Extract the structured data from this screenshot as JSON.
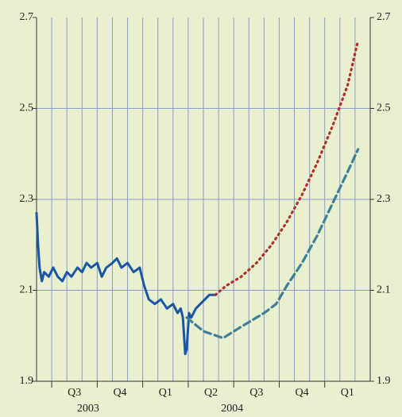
{
  "chart_data": {
    "type": "line",
    "xlim": [
      0,
      22
    ],
    "xticks": [
      {
        "value": 2.5,
        "label": "Q3"
      },
      {
        "value": 5.5,
        "label": "Q4"
      },
      {
        "value": 8.5,
        "label": "Q1"
      },
      {
        "value": 11.5,
        "label": "Q2"
      },
      {
        "value": 14.5,
        "label": "Q3"
      },
      {
        "value": 17.5,
        "label": "Q4"
      },
      {
        "value": 20.5,
        "label": "Q1"
      }
    ],
    "xtick_marks": [
      1,
      4,
      7,
      10,
      13,
      16,
      19
    ],
    "minor_xgrid": [
      1,
      2,
      3,
      4,
      5,
      6,
      7,
      8,
      9,
      10,
      11,
      12,
      13,
      14,
      15,
      16,
      17,
      18,
      19,
      20,
      21
    ],
    "year_labels": [
      {
        "value": 3.4,
        "label": "2003"
      },
      {
        "value": 12.9,
        "label": "2004"
      }
    ],
    "ylim": [
      1.9,
      2.7
    ],
    "yticks": [
      1.9,
      2.1,
      2.3,
      2.5,
      2.7
    ],
    "y2lim": [
      1.9,
      2.7
    ],
    "y2ticks": [
      1.9,
      2.1,
      2.3,
      2.5,
      2.7
    ],
    "grid": true,
    "series": [
      {
        "color": "#1b55a6",
        "style": "solid",
        "x": [
          0,
          0.1,
          0.2,
          0.35,
          0.5,
          0.8,
          1.1,
          1.4,
          1.7,
          2.0,
          2.3,
          2.7,
          3.0,
          3.3,
          3.6,
          4.0,
          4.3,
          4.6,
          5.0,
          5.3,
          5.6,
          6.0,
          6.4,
          6.8,
          7.1,
          7.4,
          7.8,
          8.2,
          8.6,
          9.0,
          9.3,
          9.5,
          9.65,
          9.8,
          9.9,
          10.05,
          10.2,
          10.5,
          10.8,
          11.1,
          11.4,
          11.8
        ],
        "values": [
          2.27,
          2.2,
          2.15,
          2.12,
          2.14,
          2.13,
          2.15,
          2.13,
          2.12,
          2.14,
          2.13,
          2.15,
          2.14,
          2.16,
          2.15,
          2.16,
          2.13,
          2.15,
          2.16,
          2.17,
          2.15,
          2.16,
          2.14,
          2.15,
          2.11,
          2.08,
          2.07,
          2.08,
          2.06,
          2.07,
          2.05,
          2.06,
          2.04,
          1.96,
          1.97,
          2.05,
          2.04,
          2.06,
          2.07,
          2.08,
          2.09,
          2.09
        ]
      },
      {
        "color": "#b0302e",
        "style": "dotted",
        "x": [
          11.8,
          12.5,
          13.5,
          14.5,
          15.5,
          16.5,
          17.5,
          18.5,
          19.5,
          20.5,
          21.2
        ],
        "values": [
          2.09,
          2.11,
          2.13,
          2.16,
          2.2,
          2.25,
          2.31,
          2.38,
          2.46,
          2.55,
          2.65
        ]
      },
      {
        "color": "#3f7f98",
        "style": "dashed",
        "x": [
          9.9,
          11.0,
          12.3,
          13.5,
          15.0,
          15.8,
          16.5,
          17.5,
          18.5,
          19.5,
          20.5,
          21.2
        ],
        "values": [
          2.04,
          2.01,
          1.995,
          2.02,
          2.05,
          2.07,
          2.11,
          2.16,
          2.22,
          2.29,
          2.36,
          2.41
        ]
      }
    ]
  }
}
